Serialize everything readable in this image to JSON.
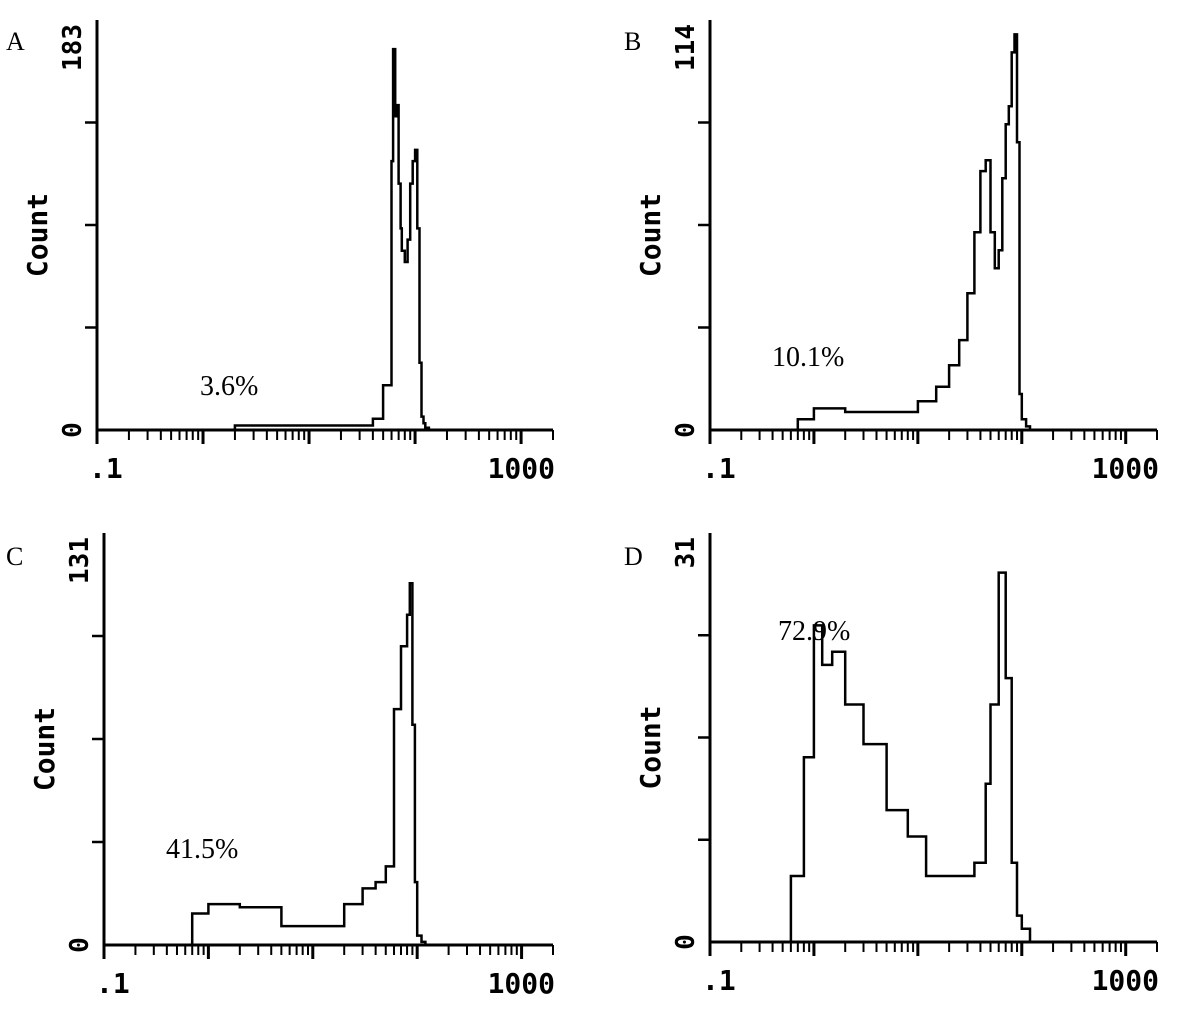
{
  "chart_data": [
    {
      "type": "line",
      "panel_label": "A",
      "ylabel": "Count",
      "ymax_label": "183",
      "ymin_label": "0",
      "x_ticklabels": [
        ".1",
        "1000"
      ],
      "x_scale": "log",
      "xlim": [
        0.1,
        2000
      ],
      "ylim": [
        0,
        183
      ],
      "annotation": "3.6%",
      "series": [
        {
          "x": [
            0.1,
            0.5,
            2,
            10,
            30,
            40,
            50,
            60,
            62,
            65,
            68,
            70,
            73,
            75,
            80,
            85,
            90,
            95,
            100,
            105,
            110,
            115,
            120,
            125,
            135,
            150,
            2000
          ],
          "values": [
            0,
            0,
            2,
            2,
            2,
            5,
            20,
            120,
            170,
            140,
            145,
            110,
            90,
            80,
            75,
            85,
            110,
            120,
            125,
            90,
            30,
            6,
            3,
            1,
            0,
            0,
            0
          ]
        }
      ]
    },
    {
      "type": "line",
      "panel_label": "B",
      "ylabel": "Count",
      "ymax_label": "114",
      "ymin_label": "0",
      "x_ticklabels": [
        ".1",
        "1000"
      ],
      "x_scale": "log",
      "xlim": [
        0.1,
        2000
      ],
      "ylim": [
        0,
        114
      ],
      "annotation": "10.1%",
      "series": [
        {
          "x": [
            0.1,
            0.5,
            0.7,
            1,
            2,
            5,
            10,
            15,
            20,
            25,
            30,
            35,
            40,
            45,
            50,
            55,
            60,
            65,
            70,
            75,
            80,
            85,
            90,
            95,
            100,
            110,
            120,
            130,
            150,
            2000
          ],
          "values": [
            0,
            0,
            3,
            6,
            5,
            5,
            8,
            12,
            18,
            25,
            38,
            55,
            72,
            75,
            55,
            45,
            50,
            70,
            85,
            90,
            105,
            110,
            80,
            10,
            3,
            1,
            0,
            0,
            0,
            0
          ]
        }
      ]
    },
    {
      "type": "line",
      "panel_label": "C",
      "ylabel": "Count",
      "ymax_label": "131",
      "ymin_label": "0",
      "x_ticklabels": [
        ".1",
        "1000"
      ],
      "x_scale": "log",
      "xlim": [
        0.1,
        2000
      ],
      "ylim": [
        0,
        131
      ],
      "annotation": "41.5%",
      "series": [
        {
          "x": [
            0.1,
            0.5,
            0.7,
            1,
            2,
            5,
            10,
            20,
            30,
            40,
            50,
            60,
            70,
            80,
            85,
            90,
            95,
            100,
            110,
            120,
            150,
            2000
          ],
          "values": [
            0,
            0,
            10,
            13,
            12,
            6,
            6,
            13,
            18,
            20,
            25,
            75,
            95,
            105,
            115,
            70,
            20,
            3,
            1,
            0,
            0,
            0
          ]
        }
      ]
    },
    {
      "type": "line",
      "panel_label": "D",
      "ylabel": "Count",
      "ymax_label": "31",
      "ymin_label": "0",
      "x_ticklabels": [
        ".1",
        "1000"
      ],
      "x_scale": "log",
      "xlim": [
        0.1,
        2000
      ],
      "ylim": [
        0,
        31
      ],
      "annotation": "72.9%",
      "series": [
        {
          "x": [
            0.1,
            0.5,
            0.6,
            0.8,
            1,
            1.2,
            1.5,
            2,
            3,
            5,
            8,
            12,
            18,
            25,
            35,
            45,
            50,
            60,
            70,
            80,
            90,
            100,
            120,
            150,
            2000
          ],
          "values": [
            0,
            0,
            5,
            14,
            24,
            21,
            22,
            18,
            15,
            10,
            8,
            5,
            5,
            5,
            6,
            12,
            18,
            28,
            20,
            6,
            2,
            1,
            0,
            0,
            0
          ]
        }
      ]
    }
  ]
}
